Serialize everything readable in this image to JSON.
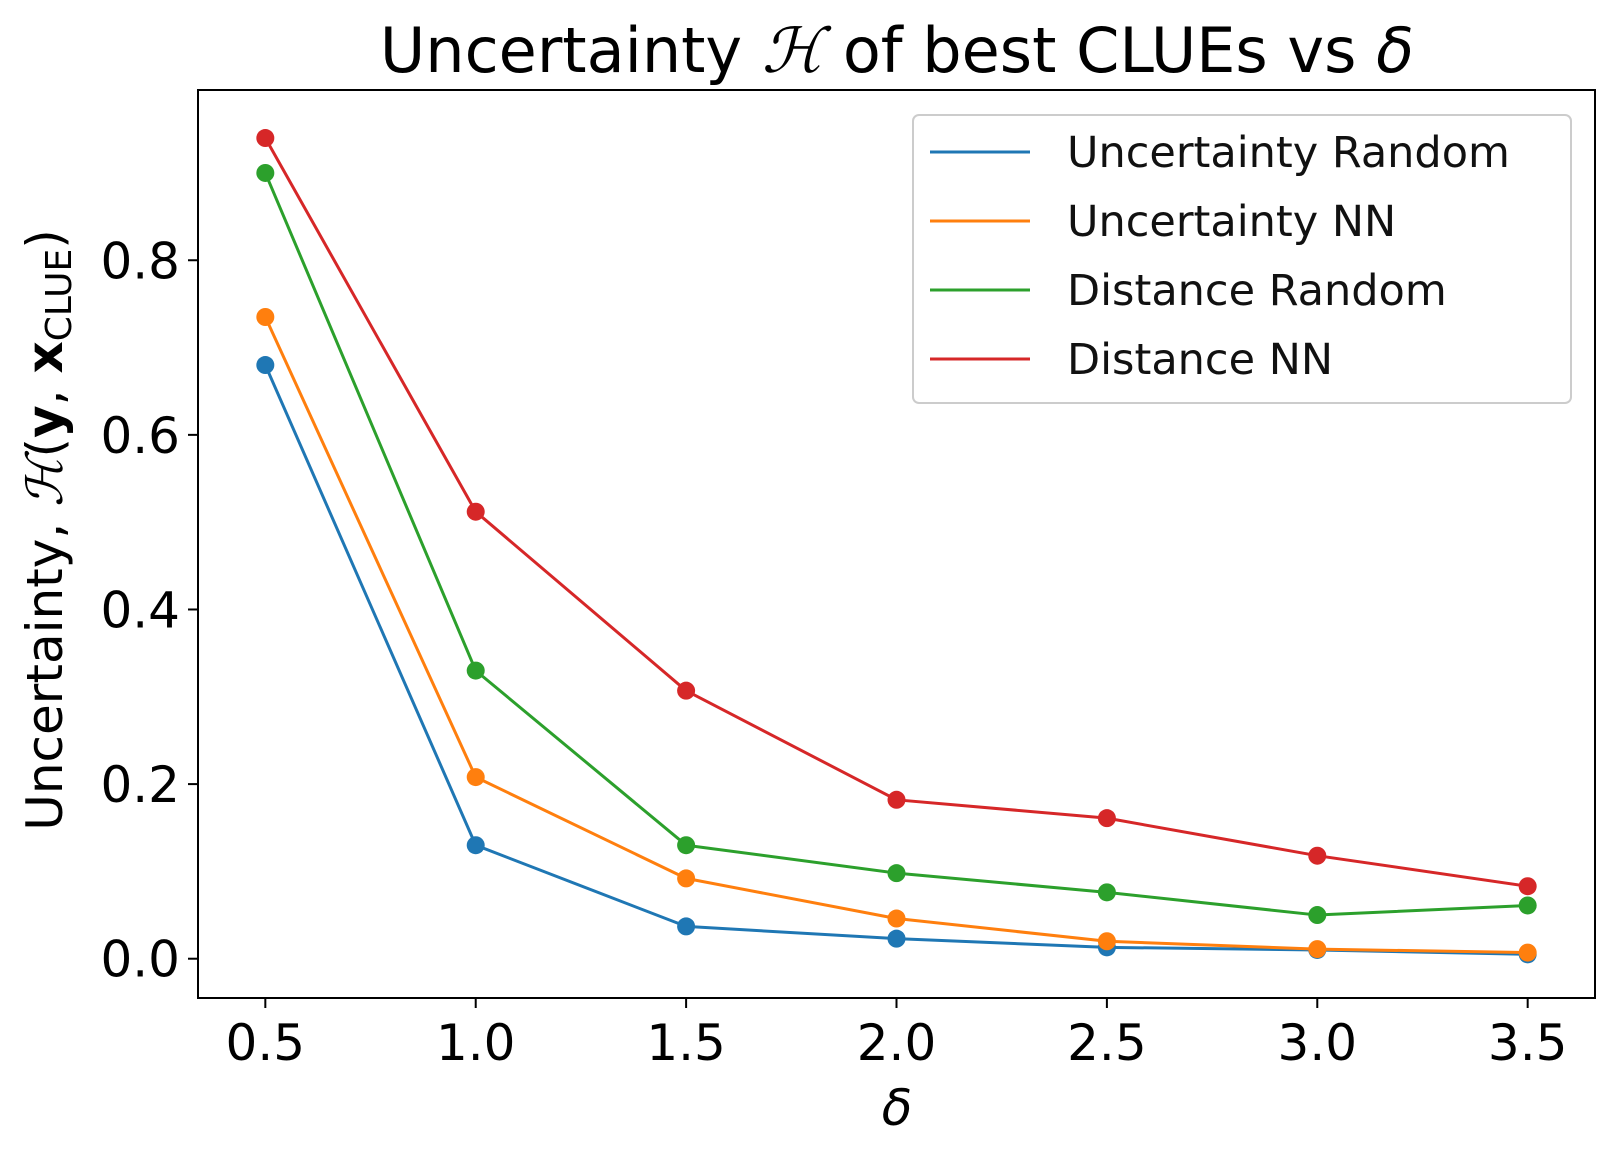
{
  "chart_data": {
    "type": "line",
    "title_parts": {
      "prefix": "Uncertainty ",
      "symbol": "ℋ",
      "middle": " of best CLUEs vs ",
      "delta": "δ"
    },
    "xlabel": "δ",
    "ylabel_parts": {
      "prefix": "Uncertainty, ",
      "symbol": "ℋ",
      "open": "(",
      "y": "y",
      "comma": ", ",
      "x": "x",
      "sub": "CLUE",
      "close": ")"
    },
    "x": [
      0.5,
      1.0,
      1.5,
      2.0,
      2.5,
      3.0,
      3.5
    ],
    "xtick_labels": [
      "0.5",
      "1.0",
      "1.5",
      "2.0",
      "2.5",
      "3.0",
      "3.5"
    ],
    "yticks": [
      0.0,
      0.2,
      0.4,
      0.6,
      0.8
    ],
    "ytick_labels": [
      "0.0",
      "0.2",
      "0.4",
      "0.6",
      "0.8"
    ],
    "xlim": [
      0.34,
      3.66
    ],
    "ylim": [
      -0.045,
      0.995
    ],
    "grid": false,
    "legend_position": "top-right",
    "series": [
      {
        "name": "Uncertainty Random",
        "color": "#1f77b4",
        "values": [
          0.68,
          0.13,
          0.037,
          0.023,
          0.013,
          0.01,
          0.005
        ]
      },
      {
        "name": "Uncertainty NN",
        "color": "#ff7f0e",
        "values": [
          0.735,
          0.208,
          0.092,
          0.046,
          0.02,
          0.011,
          0.007
        ]
      },
      {
        "name": "Distance Random",
        "color": "#2ca02c",
        "values": [
          0.9,
          0.33,
          0.13,
          0.098,
          0.076,
          0.05,
          0.061
        ]
      },
      {
        "name": "Distance NN",
        "color": "#d62728",
        "values": [
          0.94,
          0.512,
          0.307,
          0.182,
          0.161,
          0.118,
          0.083
        ]
      }
    ]
  }
}
